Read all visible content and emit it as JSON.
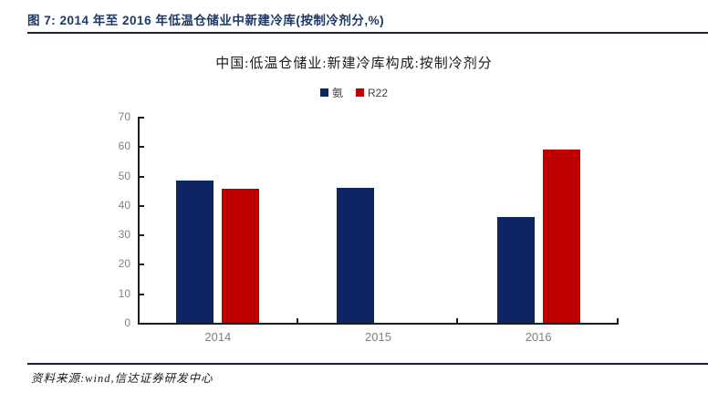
{
  "figure": {
    "caption": "图 7: 2014 年至 2016 年低温仓储业中新建冷库(按制冷剂分,%)",
    "source": "资料来源:wind,信达证券研发中心"
  },
  "chart_data": {
    "type": "bar",
    "title": "中国:低温仓储业:新建冷库构成:按制冷剂分",
    "categories": [
      "2014",
      "2015",
      "2016"
    ],
    "series": [
      {
        "name": "氨",
        "slug": "ammonia",
        "color": "#0e2565",
        "values": [
          48.4,
          45.9,
          35.8
        ]
      },
      {
        "name": "R22",
        "slug": "r22",
        "color": "#c00000",
        "values": [
          45.4,
          null,
          59.0
        ]
      }
    ],
    "ylabel": "",
    "xlabel": "",
    "ylim": [
      0,
      70
    ],
    "yticks": [
      0,
      10,
      20,
      30,
      40,
      50,
      60,
      70
    ],
    "legend_position": "top",
    "grid": false
  },
  "colors": {
    "accent_navy": "#1f3864",
    "bar_ammonia": "#0e2565",
    "bar_r22": "#c00000",
    "axis": "#1a1a1a",
    "tick_label": "#7f7f7f",
    "rule": "#1a2238"
  }
}
